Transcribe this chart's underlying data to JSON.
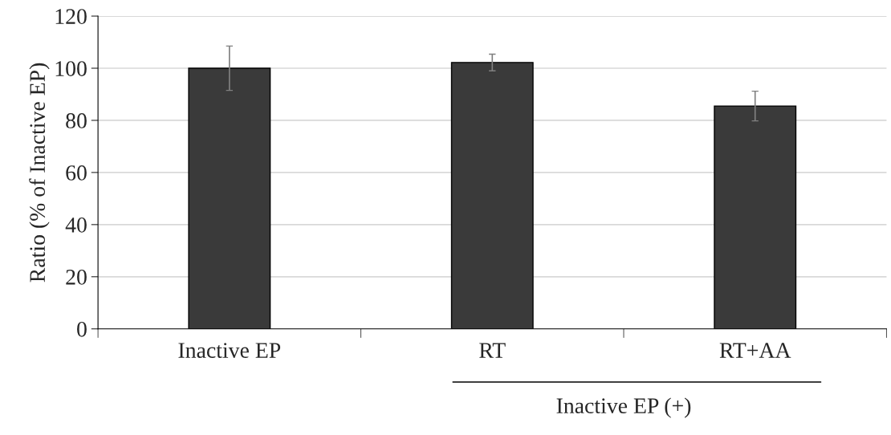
{
  "chart_data": {
    "type": "bar",
    "ylabel": "Ratio (% of Inactive EP)",
    "categories": [
      "Inactive EP",
      "RT",
      "RT+AA"
    ],
    "values": [
      100,
      102.2,
      85.5
    ],
    "errors": [
      8.5,
      3.2,
      5.7
    ],
    "color": "#3a3a3a",
    "ylim": [
      0,
      120
    ],
    "yticks": [
      0,
      20,
      40,
      60,
      80,
      100,
      120
    ],
    "grid": "y",
    "annotations": [
      "Inactive EP (+)"
    ]
  }
}
